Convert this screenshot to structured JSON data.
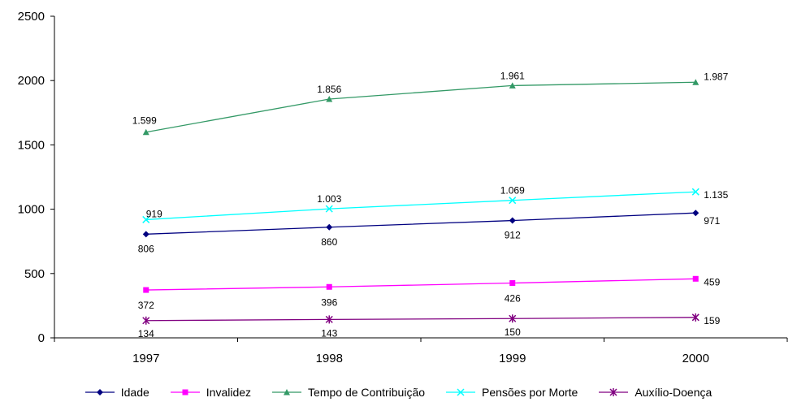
{
  "chart_data": {
    "type": "line",
    "categories": [
      "1997",
      "1998",
      "1999",
      "2000"
    ],
    "ylim": [
      0,
      2500
    ],
    "yticks": [
      "0",
      "500",
      "1000",
      "1500",
      "2000",
      "2500"
    ],
    "grid": false,
    "legend_position": "bottom",
    "series": [
      {
        "name": "Idade",
        "values": [
          806,
          860,
          912,
          971
        ],
        "labels": [
          "806",
          "860",
          "912",
          "971"
        ],
        "color": "#000080",
        "marker": "diamond"
      },
      {
        "name": "Invalidez",
        "values": [
          372,
          396,
          426,
          459
        ],
        "labels": [
          "372",
          "396",
          "426",
          "459"
        ],
        "color": "#FF00FF",
        "marker": "square"
      },
      {
        "name": "Tempo de Contribuição",
        "values": [
          1599,
          1856,
          1961,
          1987
        ],
        "labels": [
          "1.599",
          "1.856",
          "1.961",
          "1.987"
        ],
        "color": "#339966",
        "marker": "triangle"
      },
      {
        "name": "Pensões por Morte",
        "values": [
          919,
          1003,
          1069,
          1135
        ],
        "labels": [
          "919",
          "1.003",
          "1.069",
          "1.135"
        ],
        "color": "#00FFFF",
        "marker": "x"
      },
      {
        "name": "Auxílio-Doença",
        "values": [
          134,
          143,
          150,
          159
        ],
        "labels": [
          "134",
          "143",
          "150",
          "159"
        ],
        "color": "#800080",
        "marker": "star"
      }
    ]
  }
}
